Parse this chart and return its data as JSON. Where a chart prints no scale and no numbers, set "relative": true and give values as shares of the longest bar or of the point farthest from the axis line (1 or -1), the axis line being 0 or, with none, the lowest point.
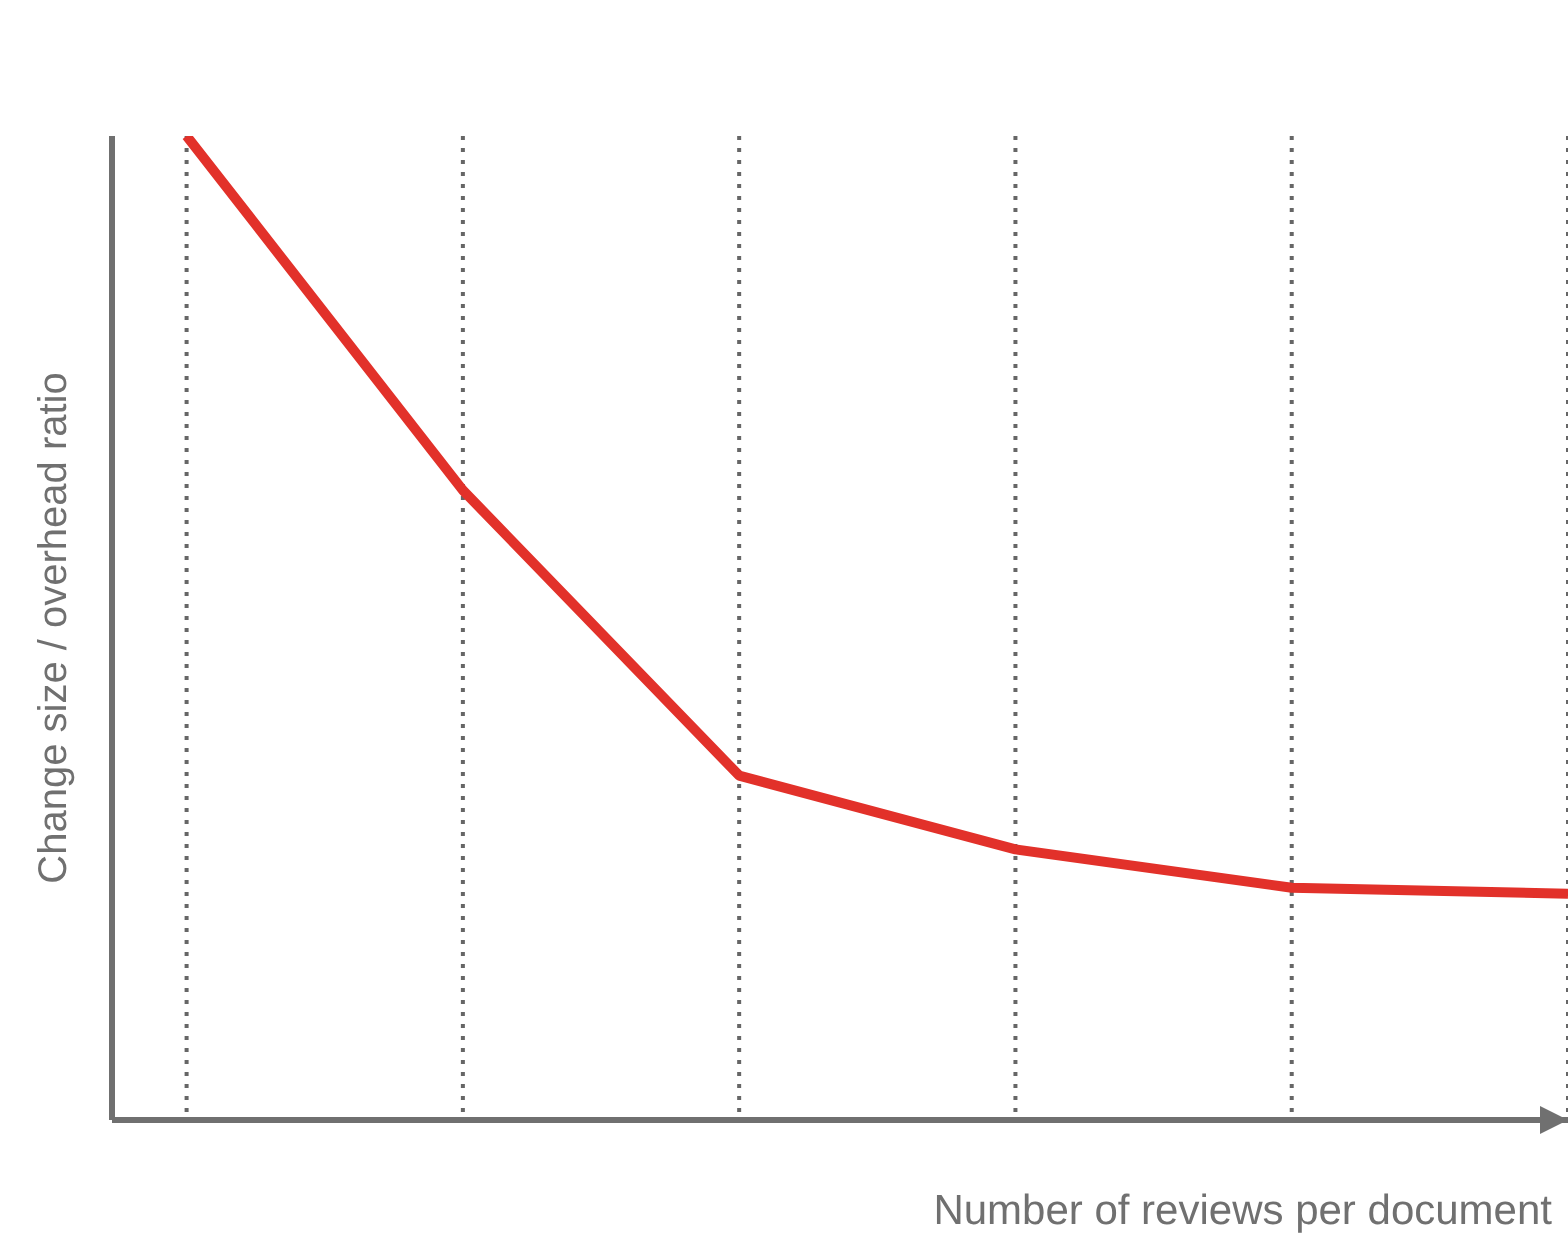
{
  "chart_data": {
    "type": "line",
    "relative": true,
    "xlabel": "Number of reviews per document",
    "ylabel": "Change size / overhead ratio",
    "categories": [
      null,
      null,
      null,
      null,
      null,
      null
    ],
    "series": [
      {
        "color": "#e2312a",
        "values": [
          1,
          0.64,
          0.35,
          0.275,
          0.236,
          0.23
        ]
      }
    ],
    "grid": "x",
    "marker": "none",
    "line_style": "solid"
  }
}
